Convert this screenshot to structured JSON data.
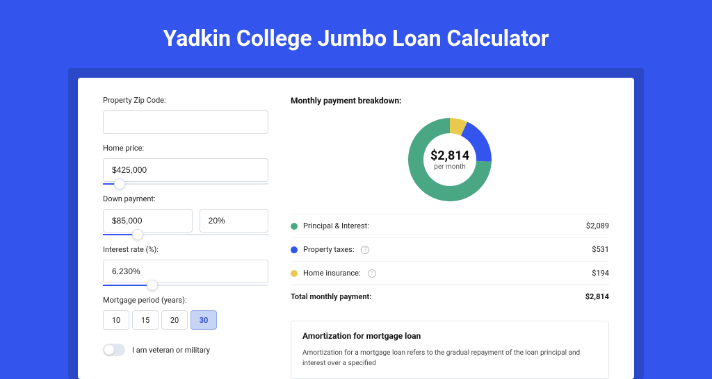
{
  "page": {
    "title": "Yadkin College Jumbo Loan Calculator",
    "background_color": "#3355ee",
    "wrapper_color": "#2a48c8",
    "card_color": "#ffffff"
  },
  "form": {
    "zip": {
      "label": "Property Zip Code:",
      "value": ""
    },
    "home_price": {
      "label": "Home price:",
      "value": "$425,000",
      "slider_pct": 10
    },
    "down_payment": {
      "label": "Down payment:",
      "value": "$85,000",
      "pct_value": "20%",
      "slider_pct": 21
    },
    "interest_rate": {
      "label": "Interest rate (%):",
      "value": "6.230%",
      "slider_pct": 30
    },
    "mortgage_period": {
      "label": "Mortgage period (years):",
      "options": [
        "10",
        "15",
        "20",
        "30"
      ],
      "selected": "30"
    },
    "veteran": {
      "label": "I am veteran or military",
      "checked": false
    }
  },
  "breakdown": {
    "title": "Monthly payment breakdown:",
    "donut": {
      "amount": "$2,814",
      "sub": "per month",
      "size": 120,
      "thickness": 22,
      "slices": [
        {
          "label": "Principal & Interest:",
          "value": "$2,089",
          "num": 2089,
          "color": "#4aa784",
          "has_info": false
        },
        {
          "label": "Property taxes:",
          "value": "$531",
          "num": 531,
          "color": "#3355ee",
          "has_info": true
        },
        {
          "label": "Home insurance:",
          "value": "$194",
          "num": 194,
          "color": "#eac94f",
          "has_info": true
        }
      ],
      "start_angle": -90
    },
    "total_label": "Total monthly payment:",
    "total_value": "$2,814"
  },
  "amortization": {
    "title": "Amortization for mortgage loan",
    "text": "Amortization for a mortgage loan refers to the gradual repayment of the loan principal and interest over a specified"
  }
}
